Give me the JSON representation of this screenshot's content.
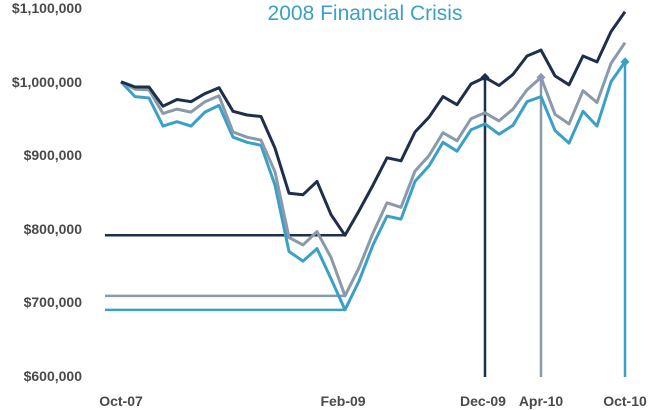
{
  "chart_data": {
    "type": "line",
    "title": "2008 Financial Crisis",
    "xlabel": "",
    "ylabel": "",
    "ylim": [
      600000,
      1100000
    ],
    "y_ticks": [
      600000,
      700000,
      800000,
      900000,
      1000000,
      1100000
    ],
    "y_tick_labels": [
      "$600,000",
      "$700,000",
      "$800,000",
      "$900,000",
      "$1,000,000",
      "$1,100,000"
    ],
    "x_tick_labels": [
      {
        "label": "Oct-07",
        "index": 0
      },
      {
        "label": "Feb-09",
        "index": 16
      },
      {
        "label": "Dec-09",
        "index": 26
      },
      {
        "label": "Apr-10",
        "index": 30
      },
      {
        "label": "Oct-10",
        "index": 36
      }
    ],
    "x_count": 37,
    "grid": false,
    "legend": "none",
    "series": [
      {
        "color": "#1e2f4d",
        "values": [
          1000000,
          993000,
          993000,
          967000,
          976000,
          973000,
          984000,
          992000,
          960000,
          955000,
          953000,
          910000,
          849000,
          847000,
          865000,
          820000,
          792000,
          825000,
          860000,
          897000,
          893000,
          932000,
          952000,
          980000,
          969000,
          997000,
          1006000,
          995000,
          1010000,
          1035000,
          1043000,
          1008000,
          996000,
          1035000,
          1027000,
          1068000,
          1095000
        ],
        "trough_value": 792000,
        "trough_index": 16,
        "recovery_index": 26
      },
      {
        "color": "#8a9aaa",
        "values": [
          1000000,
          990000,
          989000,
          957000,
          963000,
          959000,
          973000,
          981000,
          932000,
          925000,
          921000,
          878000,
          789000,
          779000,
          797000,
          762000,
          710000,
          748000,
          795000,
          836000,
          830000,
          879000,
          900000,
          931000,
          920000,
          950000,
          958000,
          947000,
          963000,
          989000,
          1006000,
          956000,
          943000,
          988000,
          972000,
          1025000,
          1053000
        ],
        "trough_value": 710000,
        "trough_index": 16,
        "recovery_index": 30
      },
      {
        "color": "#3aa0c8",
        "values": [
          1000000,
          980000,
          978000,
          940000,
          946000,
          940000,
          959000,
          968000,
          925000,
          918000,
          914000,
          860000,
          770000,
          757000,
          774000,
          733000,
          691000,
          730000,
          779000,
          818000,
          814000,
          865000,
          886000,
          918000,
          906000,
          935000,
          943000,
          929000,
          941000,
          973000,
          980000,
          934000,
          917000,
          960000,
          940000,
          1000000,
          1027000
        ],
        "trough_value": 691000,
        "trough_index": 16,
        "recovery_index": 36
      }
    ]
  }
}
